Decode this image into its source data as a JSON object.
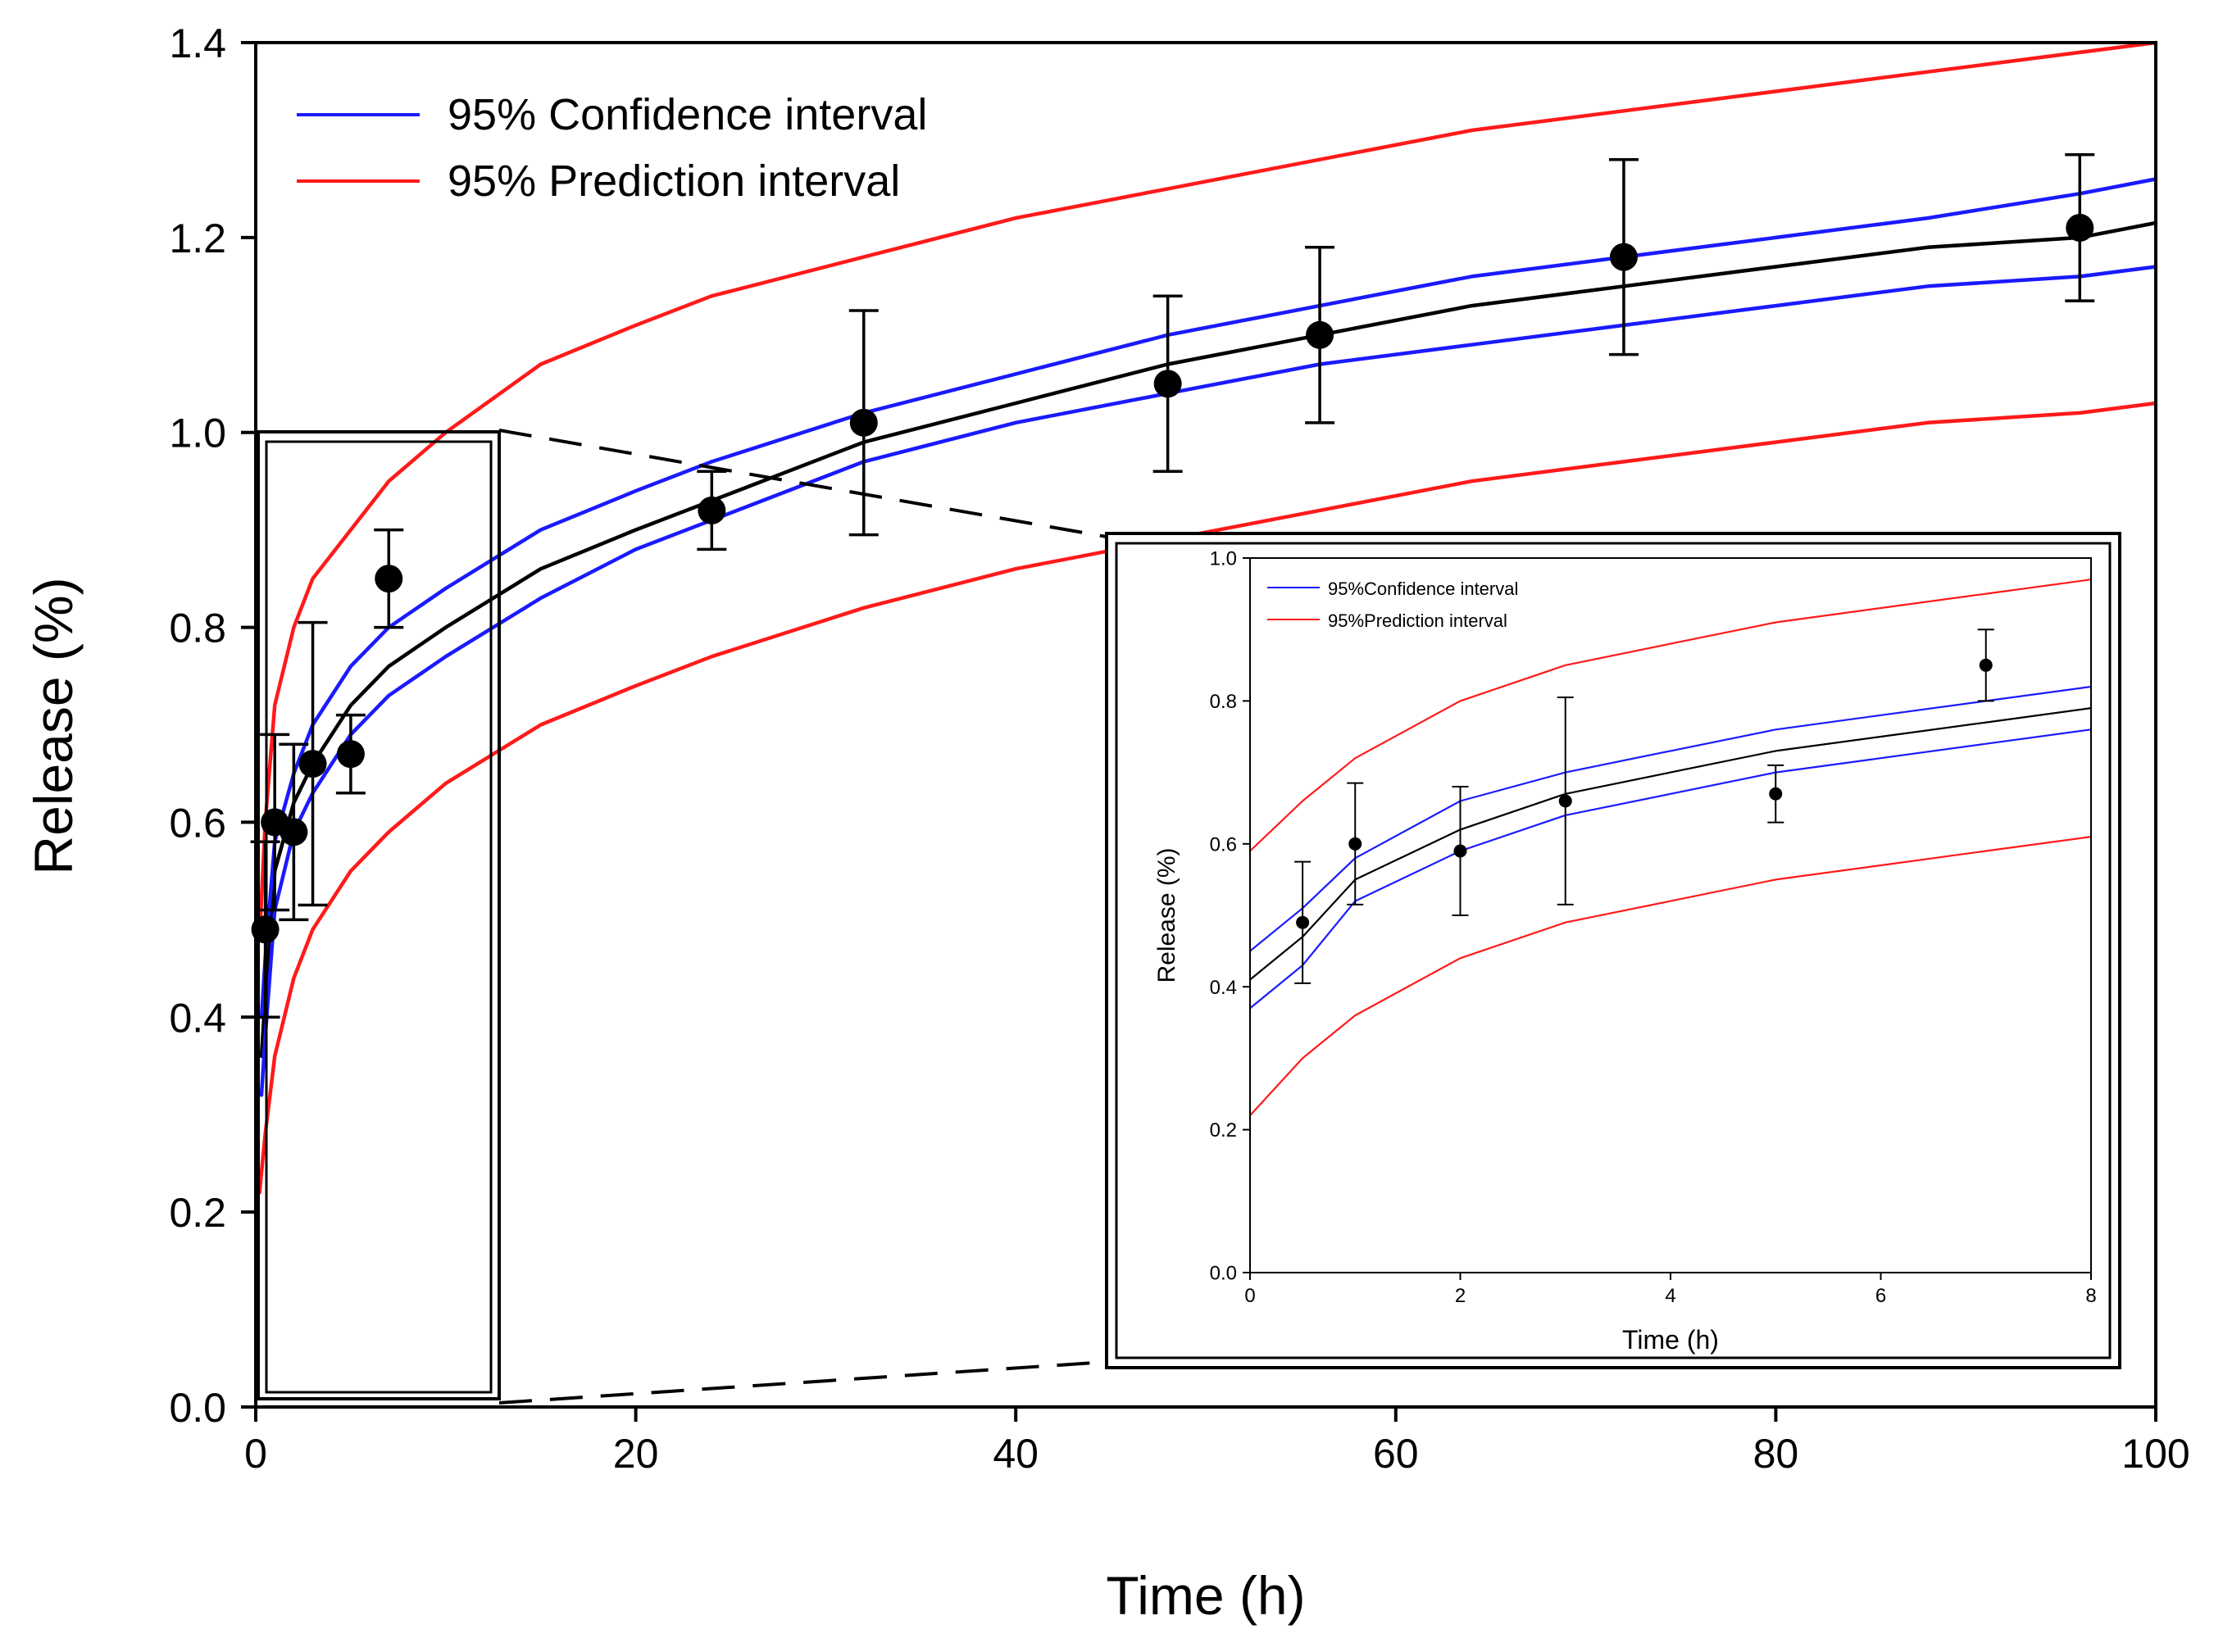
{
  "chart_data": [
    {
      "type": "line",
      "panel": "main",
      "title": "",
      "xlabel": "Time (h)",
      "ylabel": "Release (%)",
      "xlim": [
        0,
        100
      ],
      "ylim": [
        0,
        1.4
      ],
      "xticks": [
        0,
        20,
        40,
        60,
        80,
        100
      ],
      "yticks": [
        0.0,
        0.2,
        0.4,
        0.6,
        0.8,
        1.0,
        1.2,
        1.4
      ],
      "ytick_labels": [
        "0.0",
        "0.2",
        "0.4",
        "0.6",
        "0.8",
        "1.0",
        "1.2",
        "1.4"
      ],
      "grid": false,
      "legend": [
        {
          "label": "95% Confidence interval",
          "color": "#1a1aff"
        },
        {
          "label": "95% Prediction interval",
          "color": "#ff1a1a"
        }
      ],
      "legend_position": "top-left",
      "data_points": {
        "name": "Measured release",
        "color": "#000000",
        "x": [
          0.5,
          1,
          2,
          3,
          5,
          7,
          24,
          32,
          48,
          56,
          72,
          96
        ],
        "y": [
          0.49,
          0.6,
          0.59,
          0.66,
          0.67,
          0.85,
          0.92,
          1.01,
          1.05,
          1.1,
          1.18,
          1.21
        ],
        "yerr": [
          0.09,
          0.09,
          0.09,
          0.145,
          0.04,
          0.05,
          0.04,
          0.115,
          0.09,
          0.09,
          0.1,
          0.075
        ]
      },
      "series": [
        {
          "name": "Fit",
          "color": "#000000",
          "x": [
            0.3,
            0.5,
            1,
            2,
            3,
            5,
            7,
            10,
            15,
            20,
            24,
            32,
            40,
            48,
            56,
            64,
            72,
            80,
            88,
            96,
            100
          ],
          "y": [
            0.36,
            0.42,
            0.55,
            0.62,
            0.66,
            0.72,
            0.76,
            0.8,
            0.86,
            0.9,
            0.93,
            0.99,
            1.03,
            1.07,
            1.1,
            1.13,
            1.15,
            1.17,
            1.19,
            1.2,
            1.215
          ]
        },
        {
          "name": "95% Confidence interval (upper)",
          "color": "#1a1aff",
          "x": [
            0.3,
            0.5,
            1,
            2,
            3,
            5,
            7,
            10,
            15,
            20,
            24,
            32,
            40,
            48,
            56,
            64,
            72,
            80,
            88,
            96,
            100
          ],
          "y": [
            0.4,
            0.46,
            0.58,
            0.65,
            0.7,
            0.76,
            0.8,
            0.84,
            0.9,
            0.94,
            0.97,
            1.02,
            1.06,
            1.1,
            1.13,
            1.16,
            1.18,
            1.2,
            1.22,
            1.245,
            1.26
          ]
        },
        {
          "name": "95% Confidence interval (lower)",
          "color": "#1a1aff",
          "x": [
            0.3,
            0.5,
            1,
            2,
            3,
            5,
            7,
            10,
            15,
            20,
            24,
            32,
            40,
            48,
            56,
            64,
            72,
            80,
            88,
            96,
            100
          ],
          "y": [
            0.32,
            0.38,
            0.51,
            0.59,
            0.63,
            0.69,
            0.73,
            0.77,
            0.83,
            0.88,
            0.91,
            0.97,
            1.01,
            1.04,
            1.07,
            1.09,
            1.11,
            1.13,
            1.15,
            1.16,
            1.17
          ]
        },
        {
          "name": "95% Prediction interval (upper)",
          "color": "#ff1a1a",
          "x": [
            0.2,
            0.5,
            1,
            2,
            3,
            5,
            7,
            10,
            15,
            20,
            24,
            32,
            40,
            48,
            56,
            64,
            72,
            80,
            88,
            96,
            100
          ],
          "y": [
            0.48,
            0.6,
            0.72,
            0.8,
            0.85,
            0.9,
            0.95,
            1.0,
            1.07,
            1.11,
            1.14,
            1.18,
            1.22,
            1.25,
            1.28,
            1.31,
            1.33,
            1.35,
            1.37,
            1.39,
            1.4
          ]
        },
        {
          "name": "95% Prediction interval (lower)",
          "color": "#ff1a1a",
          "x": [
            0.2,
            0.5,
            1,
            2,
            3,
            5,
            7,
            10,
            15,
            20,
            24,
            32,
            40,
            48,
            56,
            64,
            72,
            80,
            88,
            96,
            100
          ],
          "y": [
            0.22,
            0.28,
            0.36,
            0.44,
            0.49,
            0.55,
            0.59,
            0.64,
            0.7,
            0.74,
            0.77,
            0.82,
            0.86,
            0.89,
            0.92,
            0.95,
            0.97,
            0.99,
            1.01,
            1.02,
            1.03
          ]
        }
      ],
      "annotation": {
        "type": "zoom-box",
        "x_range": [
          0,
          8
        ],
        "y_range": [
          0,
          1.0
        ]
      }
    },
    {
      "type": "line",
      "panel": "inset",
      "title": "",
      "xlabel": "Time (h)",
      "ylabel": "Release (%)",
      "xlim": [
        0,
        8
      ],
      "ylim": [
        0,
        1.0
      ],
      "xticks": [
        0,
        2,
        4,
        6,
        8
      ],
      "yticks": [
        0.0,
        0.2,
        0.4,
        0.6,
        0.8,
        1.0
      ],
      "ytick_labels": [
        "0.0",
        "0.2",
        "0.4",
        "0.6",
        "0.8",
        "1.0"
      ],
      "grid": false,
      "legend": [
        {
          "label": "95%Confidence interval",
          "color": "#1a1aff"
        },
        {
          "label": "95%Prediction interval",
          "color": "#ff1a1a"
        }
      ],
      "legend_position": "top-left",
      "data_points": {
        "name": "Measured release",
        "color": "#000000",
        "x": [
          0.5,
          1,
          2,
          3,
          5,
          7
        ],
        "y": [
          0.49,
          0.6,
          0.59,
          0.66,
          0.67,
          0.85
        ],
        "yerr": [
          0.085,
          0.085,
          0.09,
          0.145,
          0.04,
          0.05
        ]
      },
      "series": [
        {
          "name": "Fit",
          "color": "#000000",
          "x": [
            0,
            0.5,
            1,
            2,
            3,
            4,
            5,
            6,
            7,
            8
          ],
          "y": [
            0.41,
            0.47,
            0.55,
            0.62,
            0.67,
            0.7,
            0.73,
            0.75,
            0.77,
            0.79
          ]
        },
        {
          "name": "95% Confidence interval (upper)",
          "color": "#1a1aff",
          "x": [
            0,
            0.5,
            1,
            2,
            3,
            4,
            5,
            6,
            7,
            8
          ],
          "y": [
            0.45,
            0.51,
            0.58,
            0.66,
            0.7,
            0.73,
            0.76,
            0.78,
            0.8,
            0.82
          ]
        },
        {
          "name": "95% Confidence interval (lower)",
          "color": "#1a1aff",
          "x": [
            0,
            0.5,
            1,
            2,
            3,
            4,
            5,
            6,
            7,
            8
          ],
          "y": [
            0.37,
            0.43,
            0.52,
            0.59,
            0.64,
            0.67,
            0.7,
            0.72,
            0.74,
            0.76
          ]
        },
        {
          "name": "95% Prediction interval (upper)",
          "color": "#ff1a1a",
          "x": [
            0,
            0.5,
            1,
            2,
            3,
            4,
            5,
            6,
            7,
            8
          ],
          "y": [
            0.59,
            0.66,
            0.72,
            0.8,
            0.85,
            0.88,
            0.91,
            0.93,
            0.95,
            0.97
          ]
        },
        {
          "name": "95% Prediction interval (lower)",
          "color": "#ff1a1a",
          "x": [
            0,
            0.5,
            1,
            2,
            3,
            4,
            5,
            6,
            7,
            8
          ],
          "y": [
            0.22,
            0.3,
            0.36,
            0.44,
            0.49,
            0.52,
            0.55,
            0.57,
            0.59,
            0.61
          ]
        }
      ]
    }
  ]
}
